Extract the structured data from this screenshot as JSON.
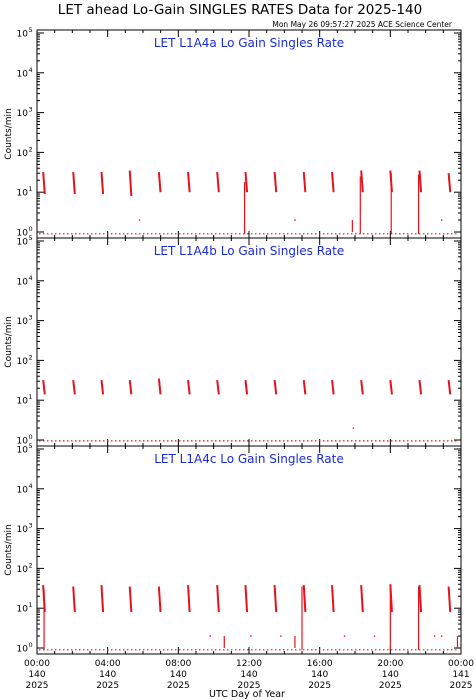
{
  "header": {
    "title": "LET ahead Lo-Gain SINGLES RATES Data for 2025-140",
    "timestamp": "Mon May 26 09:57:27 2025 ACE Science Center"
  },
  "colors": {
    "data": "#e8101a",
    "panel_title": "#1a2bd8",
    "axes": "#000000"
  },
  "chart_data": [
    {
      "type": "scatter",
      "title": "LET L1A4a Lo Gain Singles Rate",
      "ylabel": "Counts/min",
      "yscale": "log",
      "ylim": [
        1,
        100000
      ],
      "xlim": [
        0,
        24
      ],
      "x_unit": "hours (UTC), 2025-140",
      "y_ticks": [
        "10",
        "10",
        "10",
        "10",
        "10",
        "10"
      ],
      "y_tick_exponents": [
        "0",
        "1",
        "2",
        "3",
        "4",
        "5"
      ],
      "baseline": 0.9,
      "spikes": [
        {
          "x": 0.35,
          "y": [
            9,
            32
          ]
        },
        {
          "x": 2.05,
          "y": [
            9,
            32
          ]
        },
        {
          "x": 3.65,
          "y": [
            9,
            32
          ]
        },
        {
          "x": 5.25,
          "y": [
            8,
            35
          ]
        },
        {
          "x": 6.9,
          "y": [
            10,
            32
          ]
        },
        {
          "x": 8.55,
          "y": [
            10,
            32
          ]
        },
        {
          "x": 10.2,
          "y": [
            10,
            32
          ]
        },
        {
          "x": 11.8,
          "y": [
            10,
            32
          ]
        },
        {
          "x": 13.45,
          "y": [
            10,
            32
          ]
        },
        {
          "x": 15.1,
          "y": [
            10,
            32
          ]
        },
        {
          "x": 16.7,
          "y": [
            10,
            32
          ]
        },
        {
          "x": 18.35,
          "y": [
            10,
            35
          ]
        },
        {
          "x": 20.0,
          "y": [
            10,
            35
          ]
        },
        {
          "x": 21.65,
          "y": [
            10,
            35
          ]
        },
        {
          "x": 23.3,
          "y": [
            10,
            30
          ]
        }
      ],
      "drops": [
        {
          "x": 11.75,
          "y": [
            0.9,
            18
          ]
        },
        {
          "x": 17.85,
          "y": [
            1,
            2
          ]
        },
        {
          "x": 18.3,
          "y": [
            0.9,
            25
          ]
        },
        {
          "x": 20.05,
          "y": [
            0.9,
            30
          ]
        },
        {
          "x": 21.6,
          "y": [
            0.9,
            28
          ]
        }
      ],
      "dots": [
        {
          "x": 5.8,
          "y": 2
        },
        {
          "x": 14.6,
          "y": 2
        },
        {
          "x": 22.9,
          "y": 2
        }
      ]
    },
    {
      "type": "scatter",
      "title": "LET L1A4b Lo Gain Singles Rate",
      "ylabel": "Counts/min",
      "yscale": "log",
      "ylim": [
        1,
        100000
      ],
      "xlim": [
        0,
        24
      ],
      "x_unit": "hours (UTC), 2025-140",
      "y_ticks": [
        "10",
        "10",
        "10",
        "10",
        "10",
        "10"
      ],
      "y_tick_exponents": [
        "0",
        "1",
        "2",
        "3",
        "4",
        "5"
      ],
      "baseline": 0.95,
      "spikes": [
        {
          "x": 0.35,
          "y": [
            14,
            32
          ]
        },
        {
          "x": 2.05,
          "y": [
            14,
            32
          ]
        },
        {
          "x": 3.65,
          "y": [
            14,
            32
          ]
        },
        {
          "x": 5.25,
          "y": [
            14,
            32
          ]
        },
        {
          "x": 6.9,
          "y": [
            14,
            35
          ]
        },
        {
          "x": 8.55,
          "y": [
            14,
            32
          ]
        },
        {
          "x": 10.2,
          "y": [
            14,
            32
          ]
        },
        {
          "x": 11.8,
          "y": [
            14,
            32
          ]
        },
        {
          "x": 13.45,
          "y": [
            14,
            32
          ]
        },
        {
          "x": 15.1,
          "y": [
            14,
            32
          ]
        },
        {
          "x": 16.7,
          "y": [
            14,
            32
          ]
        },
        {
          "x": 18.35,
          "y": [
            14,
            32
          ]
        },
        {
          "x": 20.0,
          "y": [
            14,
            32
          ]
        },
        {
          "x": 21.65,
          "y": [
            14,
            32
          ]
        },
        {
          "x": 23.3,
          "y": [
            14,
            32
          ]
        }
      ],
      "drops": [],
      "dots": [
        {
          "x": 17.9,
          "y": 2
        }
      ]
    },
    {
      "type": "scatter",
      "title": "LET L1A4c Lo Gain Singles Rate",
      "ylabel": "Counts/min",
      "xlabel": "UTC Day of Year",
      "yscale": "log",
      "ylim": [
        1,
        100000
      ],
      "xlim": [
        0,
        24
      ],
      "x_unit": "hours (UTC), 2025-140",
      "y_ticks": [
        "10",
        "10",
        "10",
        "10",
        "10",
        "10"
      ],
      "y_tick_exponents": [
        "0",
        "1",
        "2",
        "3",
        "4",
        "5"
      ],
      "x_ticks": [
        {
          "time": "00:00",
          "day": "140",
          "year": "2025"
        },
        {
          "time": "04:00",
          "day": "140",
          "year": "2025"
        },
        {
          "time": "08:00",
          "day": "140",
          "year": "2025"
        },
        {
          "time": "12:00",
          "day": "140",
          "year": "2025"
        },
        {
          "time": "16:00",
          "day": "140",
          "year": "2025"
        },
        {
          "time": "20:00",
          "day": "140",
          "year": "2025"
        },
        {
          "time": "00:00",
          "day": "141",
          "year": "2025"
        }
      ],
      "baseline": 0.9,
      "spikes": [
        {
          "x": 0.35,
          "y": [
            8,
            38
          ]
        },
        {
          "x": 2.05,
          "y": [
            8,
            35
          ]
        },
        {
          "x": 3.65,
          "y": [
            8,
            38
          ]
        },
        {
          "x": 5.25,
          "y": [
            8,
            35
          ]
        },
        {
          "x": 6.9,
          "y": [
            8,
            35
          ]
        },
        {
          "x": 8.55,
          "y": [
            8,
            38
          ]
        },
        {
          "x": 10.2,
          "y": [
            8,
            38
          ]
        },
        {
          "x": 11.8,
          "y": [
            8,
            38
          ]
        },
        {
          "x": 13.45,
          "y": [
            8,
            38
          ]
        },
        {
          "x": 15.1,
          "y": [
            8,
            38
          ]
        },
        {
          "x": 16.7,
          "y": [
            8,
            38
          ]
        },
        {
          "x": 18.35,
          "y": [
            8,
            38
          ]
        },
        {
          "x": 20.0,
          "y": [
            8,
            40
          ]
        },
        {
          "x": 21.65,
          "y": [
            8,
            38
          ]
        },
        {
          "x": 23.3,
          "y": [
            8,
            35
          ]
        }
      ],
      "drops": [
        {
          "x": 0.4,
          "y": [
            0.9,
            30
          ]
        },
        {
          "x": 10.6,
          "y": [
            1,
            2
          ]
        },
        {
          "x": 14.6,
          "y": [
            1,
            2
          ]
        },
        {
          "x": 15.0,
          "y": [
            0.9,
            35
          ]
        },
        {
          "x": 20.0,
          "y": [
            0.9,
            38
          ]
        },
        {
          "x": 21.6,
          "y": [
            0.9,
            35
          ]
        },
        {
          "x": 23.8,
          "y": [
            1,
            2
          ]
        }
      ],
      "dots": [
        {
          "x": 9.8,
          "y": 2
        },
        {
          "x": 12.1,
          "y": 2
        },
        {
          "x": 13.8,
          "y": 2
        },
        {
          "x": 17.4,
          "y": 2
        },
        {
          "x": 19.1,
          "y": 2
        },
        {
          "x": 22.5,
          "y": 2
        },
        {
          "x": 22.9,
          "y": 2
        }
      ]
    }
  ]
}
